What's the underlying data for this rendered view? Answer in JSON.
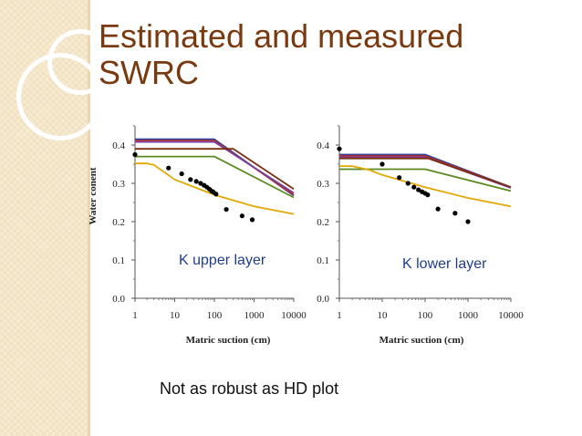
{
  "slide": {
    "title_line1": "Estimated and measured",
    "title_line2": "SWRC",
    "note": "Not as robust as HD plot",
    "title_color": "#7a3a10"
  },
  "chart_data": [
    {
      "type": "line",
      "panel_label": "K upper layer",
      "xlabel": "Matric suction (cm)",
      "ylabel": "Water conent",
      "xscale": "log",
      "xlim": [
        1,
        10000
      ],
      "ylim": [
        0,
        0.45
      ],
      "x_ticks": [
        "1",
        "10",
        "100",
        "1000",
        "10000"
      ],
      "y_ticks": [
        "0.0",
        "0.1",
        "0.2",
        "0.3",
        "0.4"
      ],
      "series": [
        {
          "color": "#1f3fa0",
          "x": [
            1,
            100,
            10000
          ],
          "y": [
            0.415,
            0.415,
            0.268
          ]
        },
        {
          "color": "#b03030",
          "x": [
            1,
            100,
            10000
          ],
          "y": [
            0.412,
            0.412,
            0.27
          ]
        },
        {
          "color": "#7b3fa0",
          "x": [
            1,
            100,
            10000
          ],
          "y": [
            0.408,
            0.408,
            0.275
          ]
        },
        {
          "color": "#7a3010",
          "x": [
            1,
            300,
            10000
          ],
          "y": [
            0.39,
            0.39,
            0.285
          ]
        },
        {
          "color": "#5a8a20",
          "x": [
            1,
            100,
            10000
          ],
          "y": [
            0.37,
            0.37,
            0.263
          ]
        },
        {
          "color": "#e0a800",
          "x": [
            1,
            2,
            3,
            10,
            100,
            1000,
            10000
          ],
          "y": [
            0.352,
            0.352,
            0.348,
            0.31,
            0.27,
            0.24,
            0.22
          ]
        },
        {
          "color": "#000000",
          "marker": "dot",
          "x": [
            1,
            7,
            15,
            25,
            35,
            45,
            55,
            65,
            75,
            85,
            95,
            110,
            200,
            500,
            900
          ],
          "y": [
            0.375,
            0.34,
            0.325,
            0.31,
            0.305,
            0.3,
            0.295,
            0.29,
            0.285,
            0.28,
            0.277,
            0.272,
            0.232,
            0.215,
            0.205
          ]
        }
      ]
    },
    {
      "type": "line",
      "panel_label": "K lower layer",
      "xlabel": "Matric suction (cm)",
      "ylabel": "",
      "xscale": "log",
      "xlim": [
        1,
        10000
      ],
      "ylim": [
        0,
        0.45
      ],
      "x_ticks": [
        "1",
        "10",
        "100",
        "1000",
        "10000"
      ],
      "y_ticks": [
        "0.0",
        "0.1",
        "0.2",
        "0.3",
        "0.4"
      ],
      "series": [
        {
          "color": "#1f3fa0",
          "x": [
            1,
            100,
            10000
          ],
          "y": [
            0.375,
            0.375,
            0.29
          ]
        },
        {
          "color": "#b03030",
          "x": [
            1,
            100,
            10000
          ],
          "y": [
            0.372,
            0.372,
            0.29
          ]
        },
        {
          "color": "#7b3fa0",
          "x": [
            1,
            100,
            10000
          ],
          "y": [
            0.368,
            0.368,
            0.288
          ]
        },
        {
          "color": "#7a3010",
          "x": [
            1,
            120,
            10000
          ],
          "y": [
            0.365,
            0.365,
            0.29
          ]
        },
        {
          "color": "#5a8a20",
          "x": [
            1,
            100,
            10000
          ],
          "y": [
            0.337,
            0.337,
            0.28
          ]
        },
        {
          "color": "#e0a800",
          "x": [
            1,
            2,
            5,
            10,
            100,
            1000,
            10000
          ],
          "y": [
            0.345,
            0.345,
            0.335,
            0.322,
            0.29,
            0.262,
            0.24
          ]
        },
        {
          "color": "#000000",
          "marker": "dot",
          "x": [
            1,
            10,
            25,
            40,
            55,
            70,
            85,
            100,
            115,
            200,
            500,
            1000
          ],
          "y": [
            0.39,
            0.35,
            0.315,
            0.3,
            0.29,
            0.283,
            0.278,
            0.274,
            0.27,
            0.233,
            0.222,
            0.2
          ]
        }
      ]
    }
  ]
}
